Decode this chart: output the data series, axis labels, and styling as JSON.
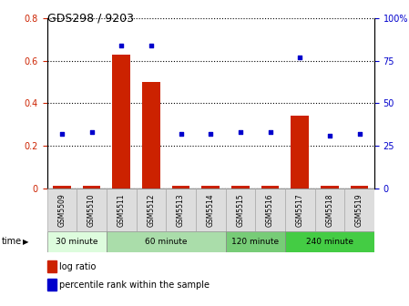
{
  "title": "GDS298 / 9203",
  "samples": [
    "GSM5509",
    "GSM5510",
    "GSM5511",
    "GSM5512",
    "GSM5513",
    "GSM5514",
    "GSM5515",
    "GSM5516",
    "GSM5517",
    "GSM5518",
    "GSM5519"
  ],
  "log_ratio": [
    0.01,
    0.01,
    0.63,
    0.5,
    0.01,
    0.01,
    0.01,
    0.01,
    0.34,
    0.01,
    0.01
  ],
  "percentile_rank": [
    32,
    33,
    84,
    84,
    32,
    32,
    33,
    33,
    77,
    31,
    32
  ],
  "bar_color": "#cc2200",
  "dot_color": "#0000cc",
  "ylim_left": [
    0,
    0.8
  ],
  "ylim_right": [
    0,
    100
  ],
  "yticks_left": [
    0.0,
    0.2,
    0.4,
    0.6,
    0.8
  ],
  "ytick_labels_left": [
    "0",
    "0.2",
    "0.4",
    "0.6",
    "0.8"
  ],
  "yticks_right": [
    0,
    25,
    50,
    75,
    100
  ],
  "ytick_labels_right": [
    "0",
    "25",
    "50",
    "75",
    "100%"
  ],
  "groups": [
    {
      "label": "30 minute",
      "start": 0,
      "end": 1,
      "color": "#ddffdd"
    },
    {
      "label": "60 minute",
      "start": 2,
      "end": 5,
      "color": "#aaddaa"
    },
    {
      "label": "120 minute",
      "start": 6,
      "end": 7,
      "color": "#77cc77"
    },
    {
      "label": "240 minute",
      "start": 8,
      "end": 10,
      "color": "#44cc44"
    }
  ],
  "tick_label_color_left": "#cc2200",
  "tick_label_color_right": "#0000cc",
  "legend_log_ratio": "log ratio",
  "legend_percentile": "percentile rank within the sample"
}
